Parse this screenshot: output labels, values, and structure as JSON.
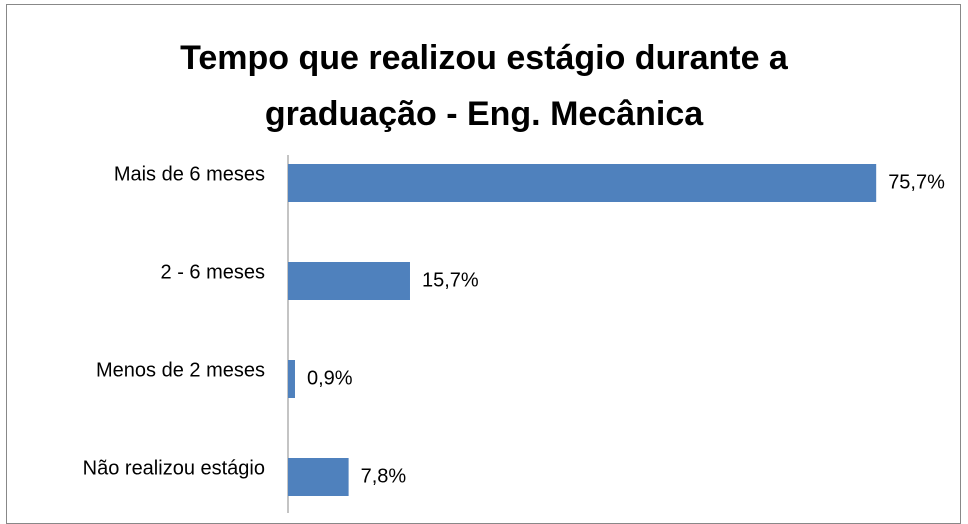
{
  "chart_data": {
    "type": "bar",
    "orientation": "horizontal",
    "title": "Tempo que realizou estágio durante a graduação - Eng. Mecânica",
    "categories": [
      "Mais de 6 meses",
      "2 - 6 meses",
      "Menos de 2 meses",
      "Não realizou estágio"
    ],
    "values": [
      75.7,
      15.7,
      0.9,
      7.8
    ],
    "value_labels": [
      "75,7%",
      "15,7%",
      "0,9%",
      "7,8%"
    ],
    "color": "#4f81bd"
  }
}
